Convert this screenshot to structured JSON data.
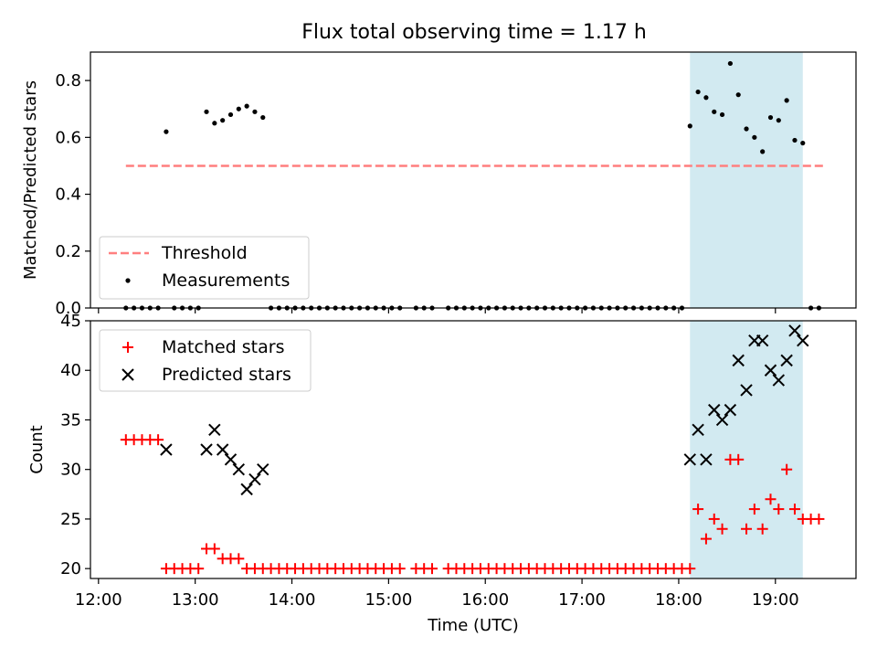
{
  "figure": {
    "title": "Flux total observing time = 1.17 h"
  },
  "chart_data": [
    {
      "panel": "top",
      "type": "scatter",
      "xlabel": "",
      "ylabel": "Matched/Predicted stars",
      "ylim": [
        0.0,
        0.9
      ],
      "yticks": [
        0.0,
        0.2,
        0.4,
        0.6,
        0.8
      ],
      "ytick_labels": [
        "0.0",
        "0.2",
        "0.4",
        "0.6",
        "0.8"
      ],
      "xlim": [
        "11:55",
        "19:50"
      ],
      "grid": false,
      "legend": {
        "placement": "bottom-left",
        "entries": [
          "Threshold",
          "Measurements"
        ]
      },
      "threshold": {
        "name": "Threshold",
        "y": 0.5,
        "x_start": "12:17",
        "x_end": "19:30",
        "color": "#ff7f7f",
        "style": "dashed"
      },
      "highlight_span": {
        "x_start": "18:07",
        "x_end": "19:17",
        "color": "#add8e6"
      },
      "series": [
        {
          "name": "Measurements",
          "color": "#000000",
          "marker": "dot",
          "points": [
            [
              "12:17",
              0.0
            ],
            [
              "12:22",
              0.0
            ],
            [
              "12:27",
              0.0
            ],
            [
              "12:32",
              0.0
            ],
            [
              "12:37",
              0.0
            ],
            [
              "12:42",
              0.62
            ],
            [
              "12:47",
              0.0
            ],
            [
              "12:52",
              0.0
            ],
            [
              "12:57",
              0.0
            ],
            [
              "13:02",
              0.0
            ],
            [
              "13:07",
              0.69
            ],
            [
              "13:12",
              0.65
            ],
            [
              "13:17",
              0.66
            ],
            [
              "13:22",
              0.68
            ],
            [
              "13:27",
              0.7
            ],
            [
              "13:32",
              0.71
            ],
            [
              "13:37",
              0.69
            ],
            [
              "13:42",
              0.67
            ],
            [
              "13:47",
              0.0
            ],
            [
              "13:52",
              0.0
            ],
            [
              "13:57",
              0.0
            ],
            [
              "14:02",
              0.0
            ],
            [
              "14:07",
              0.0
            ],
            [
              "14:12",
              0.0
            ],
            [
              "14:17",
              0.0
            ],
            [
              "14:22",
              0.0
            ],
            [
              "14:27",
              0.0
            ],
            [
              "14:32",
              0.0
            ],
            [
              "14:37",
              0.0
            ],
            [
              "14:42",
              0.0
            ],
            [
              "14:47",
              0.0
            ],
            [
              "14:52",
              0.0
            ],
            [
              "14:57",
              0.0
            ],
            [
              "15:02",
              0.0
            ],
            [
              "15:07",
              0.0
            ],
            [
              "15:17",
              0.0
            ],
            [
              "15:22",
              0.0
            ],
            [
              "15:27",
              0.0
            ],
            [
              "15:37",
              0.0
            ],
            [
              "15:42",
              0.0
            ],
            [
              "15:47",
              0.0
            ],
            [
              "15:52",
              0.0
            ],
            [
              "15:57",
              0.0
            ],
            [
              "16:02",
              0.0
            ],
            [
              "16:07",
              0.0
            ],
            [
              "16:12",
              0.0
            ],
            [
              "16:17",
              0.0
            ],
            [
              "16:22",
              0.0
            ],
            [
              "16:27",
              0.0
            ],
            [
              "16:32",
              0.0
            ],
            [
              "16:37",
              0.0
            ],
            [
              "16:42",
              0.0
            ],
            [
              "16:47",
              0.0
            ],
            [
              "16:52",
              0.0
            ],
            [
              "16:57",
              0.0
            ],
            [
              "17:02",
              0.0
            ],
            [
              "17:07",
              0.0
            ],
            [
              "17:12",
              0.0
            ],
            [
              "17:17",
              0.0
            ],
            [
              "17:22",
              0.0
            ],
            [
              "17:27",
              0.0
            ],
            [
              "17:32",
              0.0
            ],
            [
              "17:37",
              0.0
            ],
            [
              "17:42",
              0.0
            ],
            [
              "17:47",
              0.0
            ],
            [
              "17:52",
              0.0
            ],
            [
              "17:57",
              0.0
            ],
            [
              "18:02",
              0.0
            ],
            [
              "18:07",
              0.64
            ],
            [
              "18:12",
              0.76
            ],
            [
              "18:17",
              0.74
            ],
            [
              "18:22",
              0.69
            ],
            [
              "18:27",
              0.68
            ],
            [
              "18:32",
              0.86
            ],
            [
              "18:37",
              0.75
            ],
            [
              "18:42",
              0.63
            ],
            [
              "18:47",
              0.6
            ],
            [
              "18:52",
              0.55
            ],
            [
              "18:57",
              0.67
            ],
            [
              "19:02",
              0.66
            ],
            [
              "19:07",
              0.73
            ],
            [
              "19:12",
              0.59
            ],
            [
              "19:17",
              0.58
            ],
            [
              "19:22",
              0.0
            ],
            [
              "19:27",
              0.0
            ]
          ]
        }
      ]
    },
    {
      "panel": "bottom",
      "type": "scatter",
      "xlabel": "Time (UTC)",
      "ylabel": "Count",
      "ylim": [
        19.0,
        45.0
      ],
      "yticks": [
        20,
        25,
        30,
        35,
        40,
        45
      ],
      "ytick_labels": [
        "20",
        "25",
        "30",
        "35",
        "40",
        "45"
      ],
      "xlim": [
        "11:55",
        "19:50"
      ],
      "xticks": [
        "12:00",
        "13:00",
        "14:00",
        "15:00",
        "16:00",
        "17:00",
        "18:00",
        "19:00"
      ],
      "grid": false,
      "legend": {
        "placement": "top-left",
        "entries": [
          "Matched stars",
          "Predicted stars"
        ]
      },
      "highlight_span": {
        "x_start": "18:07",
        "x_end": "19:17",
        "color": "#add8e6"
      },
      "series": [
        {
          "name": "Matched stars",
          "color": "#ff0000",
          "marker": "plus",
          "points": [
            [
              "12:17",
              33
            ],
            [
              "12:22",
              33
            ],
            [
              "12:27",
              33
            ],
            [
              "12:32",
              33
            ],
            [
              "12:37",
              33
            ],
            [
              "12:42",
              20
            ],
            [
              "12:47",
              20
            ],
            [
              "12:52",
              20
            ],
            [
              "12:57",
              20
            ],
            [
              "13:02",
              20
            ],
            [
              "13:07",
              22
            ],
            [
              "13:12",
              22
            ],
            [
              "13:17",
              21
            ],
            [
              "13:22",
              21
            ],
            [
              "13:27",
              21
            ],
            [
              "13:32",
              20
            ],
            [
              "13:37",
              20
            ],
            [
              "13:42",
              20
            ],
            [
              "13:47",
              20
            ],
            [
              "13:52",
              20
            ],
            [
              "13:57",
              20
            ],
            [
              "14:02",
              20
            ],
            [
              "14:07",
              20
            ],
            [
              "14:12",
              20
            ],
            [
              "14:17",
              20
            ],
            [
              "14:22",
              20
            ],
            [
              "14:27",
              20
            ],
            [
              "14:32",
              20
            ],
            [
              "14:37",
              20
            ],
            [
              "14:42",
              20
            ],
            [
              "14:47",
              20
            ],
            [
              "14:52",
              20
            ],
            [
              "14:57",
              20
            ],
            [
              "15:02",
              20
            ],
            [
              "15:07",
              20
            ],
            [
              "15:17",
              20
            ],
            [
              "15:22",
              20
            ],
            [
              "15:27",
              20
            ],
            [
              "15:37",
              20
            ],
            [
              "15:42",
              20
            ],
            [
              "15:47",
              20
            ],
            [
              "15:52",
              20
            ],
            [
              "15:57",
              20
            ],
            [
              "16:02",
              20
            ],
            [
              "16:07",
              20
            ],
            [
              "16:12",
              20
            ],
            [
              "16:17",
              20
            ],
            [
              "16:22",
              20
            ],
            [
              "16:27",
              20
            ],
            [
              "16:32",
              20
            ],
            [
              "16:37",
              20
            ],
            [
              "16:42",
              20
            ],
            [
              "16:47",
              20
            ],
            [
              "16:52",
              20
            ],
            [
              "16:57",
              20
            ],
            [
              "17:02",
              20
            ],
            [
              "17:07",
              20
            ],
            [
              "17:12",
              20
            ],
            [
              "17:17",
              20
            ],
            [
              "17:22",
              20
            ],
            [
              "17:27",
              20
            ],
            [
              "17:32",
              20
            ],
            [
              "17:37",
              20
            ],
            [
              "17:42",
              20
            ],
            [
              "17:47",
              20
            ],
            [
              "17:52",
              20
            ],
            [
              "17:57",
              20
            ],
            [
              "18:02",
              20
            ],
            [
              "18:07",
              20
            ],
            [
              "18:12",
              26
            ],
            [
              "18:17",
              23
            ],
            [
              "18:22",
              25
            ],
            [
              "18:27",
              24
            ],
            [
              "18:32",
              31
            ],
            [
              "18:37",
              31
            ],
            [
              "18:42",
              24
            ],
            [
              "18:47",
              26
            ],
            [
              "18:52",
              24
            ],
            [
              "18:57",
              27
            ],
            [
              "19:02",
              26
            ],
            [
              "19:07",
              30
            ],
            [
              "19:12",
              26
            ],
            [
              "19:17",
              25
            ],
            [
              "19:22",
              25
            ],
            [
              "19:27",
              25
            ]
          ]
        },
        {
          "name": "Predicted stars",
          "color": "#000000",
          "marker": "x",
          "points": [
            [
              "12:42",
              32
            ],
            [
              "13:07",
              32
            ],
            [
              "13:12",
              34
            ],
            [
              "13:17",
              32
            ],
            [
              "13:22",
              31
            ],
            [
              "13:27",
              30
            ],
            [
              "13:32",
              28
            ],
            [
              "13:37",
              29
            ],
            [
              "13:42",
              30
            ],
            [
              "18:07",
              31
            ],
            [
              "18:12",
              34
            ],
            [
              "18:17",
              31
            ],
            [
              "18:22",
              36
            ],
            [
              "18:27",
              35
            ],
            [
              "18:32",
              36
            ],
            [
              "18:37",
              41
            ],
            [
              "18:42",
              38
            ],
            [
              "18:47",
              43
            ],
            [
              "18:52",
              43
            ],
            [
              "18:57",
              40
            ],
            [
              "19:02",
              39
            ],
            [
              "19:07",
              41
            ],
            [
              "19:12",
              44
            ],
            [
              "19:17",
              43
            ]
          ]
        }
      ]
    }
  ]
}
